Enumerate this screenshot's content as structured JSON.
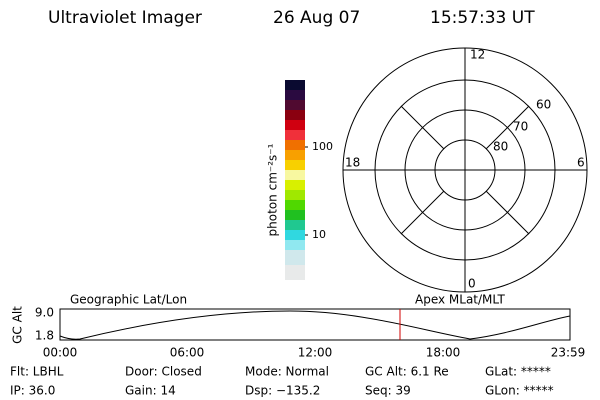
{
  "header": {
    "title": "Ultraviolet Imager",
    "date": "26 Aug 07",
    "time": "15:57:33 UT"
  },
  "colorbar": {
    "label": "photon cm⁻²s⁻¹",
    "ticks": [
      "100",
      "10"
    ]
  },
  "polar": {
    "labels": [
      "12",
      "6",
      "18",
      "0",
      "60",
      "70",
      "80"
    ]
  },
  "altitude_plot": {
    "y_label": "GC Alt",
    "left_title": "Geographic Lat/Lon",
    "right_title": "Apex MLat/MLT",
    "yticks": [
      "9.0",
      "1.8"
    ],
    "xticks": [
      "00:00",
      "06:00",
      "12:00",
      "18:00",
      "23:59"
    ]
  },
  "status": [
    [
      "Flt: LBHL",
      "Door: Closed",
      "Mode: Normal",
      "GC Alt: 6.1 Re",
      "GLat: *****"
    ],
    [
      "IP: 36.0",
      "Gain: 14",
      "Dsp: −135.2",
      "Seq: 39",
      "GLon: *****"
    ]
  ]
}
